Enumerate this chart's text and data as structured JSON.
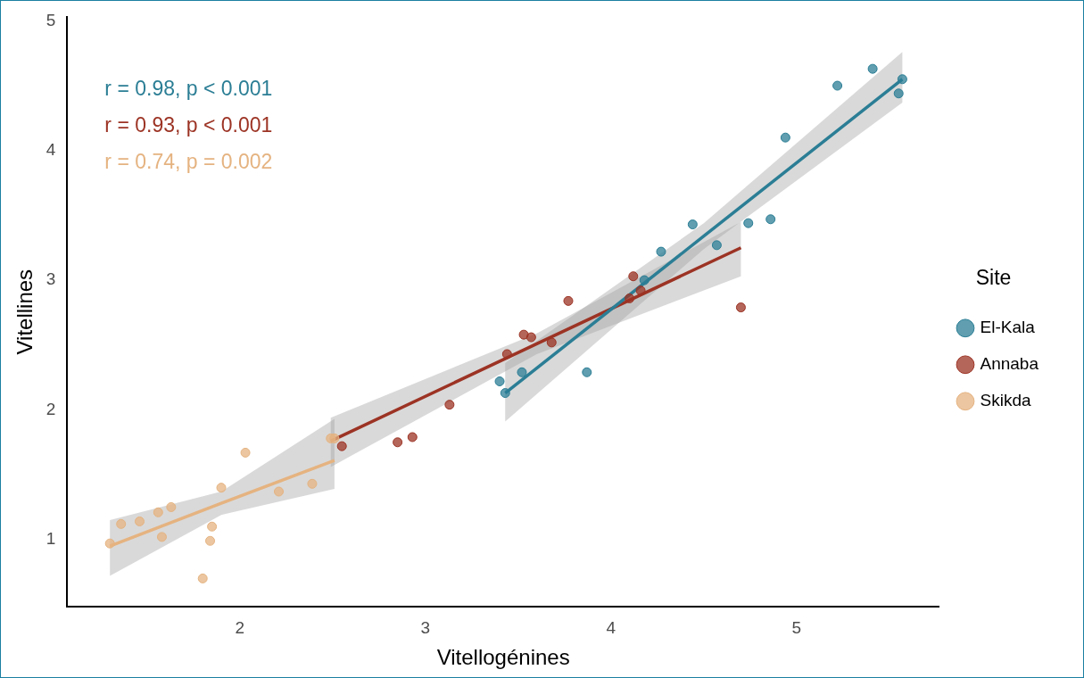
{
  "chart_data": {
    "type": "scatter",
    "xlabel": "Vitellogénines",
    "ylabel": "Vitellines",
    "legend_title": "Site",
    "legend": "right",
    "marker": "circle",
    "xlim": [
      1.07,
      5.77
    ],
    "ylim": [
      0.48,
      5.03
    ],
    "xticks": [
      2,
      3,
      4,
      5
    ],
    "yticks": [
      1,
      2,
      3,
      4,
      5
    ],
    "annotations": [
      "r = 0.98, p < 0.001",
      "r = 0.93, p < 0.001",
      "r = 0.74, p = 0.002"
    ],
    "series": [
      {
        "name": "El-Kala",
        "color": "#2b7e95",
        "x": [
          3.4,
          3.43,
          3.52,
          3.87,
          4.18,
          4.27,
          4.44,
          4.57,
          4.74,
          4.86,
          4.94,
          5.22,
          5.41,
          5.55,
          5.57
        ],
        "values": [
          2.22,
          2.13,
          2.29,
          2.29,
          3.0,
          3.22,
          3.43,
          3.27,
          3.44,
          3.47,
          4.1,
          4.5,
          4.63,
          4.44,
          4.55
        ]
      },
      {
        "name": "Annaba",
        "color": "#9c3324",
        "x": [
          2.55,
          2.85,
          2.93,
          3.13,
          3.44,
          3.53,
          3.57,
          3.68,
          3.77,
          4.1,
          4.12,
          4.16,
          4.7
        ],
        "values": [
          1.72,
          1.75,
          1.79,
          2.04,
          2.43,
          2.58,
          2.56,
          2.52,
          2.84,
          2.86,
          3.03,
          2.92,
          2.79
        ]
      },
      {
        "name": "Skikda",
        "color": "#e5b380",
        "x": [
          1.3,
          1.36,
          1.46,
          1.56,
          1.58,
          1.63,
          1.8,
          1.84,
          1.85,
          1.9,
          2.03,
          2.21,
          2.39,
          2.49,
          2.51
        ],
        "values": [
          0.97,
          1.12,
          1.14,
          1.21,
          1.02,
          1.25,
          0.7,
          0.99,
          1.1,
          1.4,
          1.67,
          1.37,
          1.43,
          1.78,
          1.78
        ]
      },
      {
        "color": "#2b7e95",
        "type": "line",
        "marker": "none",
        "x": [
          3.43,
          4.5,
          5.57
        ],
        "values": [
          2.13,
          3.34,
          4.55
        ],
        "lower": [
          1.91,
          3.24,
          4.37
        ],
        "upper": [
          2.36,
          3.44,
          4.76
        ]
      },
      {
        "color": "#9c3324",
        "type": "line",
        "marker": "none",
        "x": [
          2.49,
          3.6,
          4.7
        ],
        "values": [
          1.76,
          2.51,
          3.25
        ],
        "lower": [
          1.56,
          2.43,
          3.03
        ],
        "upper": [
          1.94,
          2.59,
          3.45
        ]
      },
      {
        "color": "#e5b380",
        "type": "line",
        "marker": "none",
        "x": [
          1.3,
          1.9,
          2.51
        ],
        "values": [
          0.95,
          1.28,
          1.61
        ],
        "lower": [
          0.72,
          1.19,
          1.39
        ],
        "upper": [
          1.15,
          1.37,
          1.93
        ]
      }
    ]
  }
}
